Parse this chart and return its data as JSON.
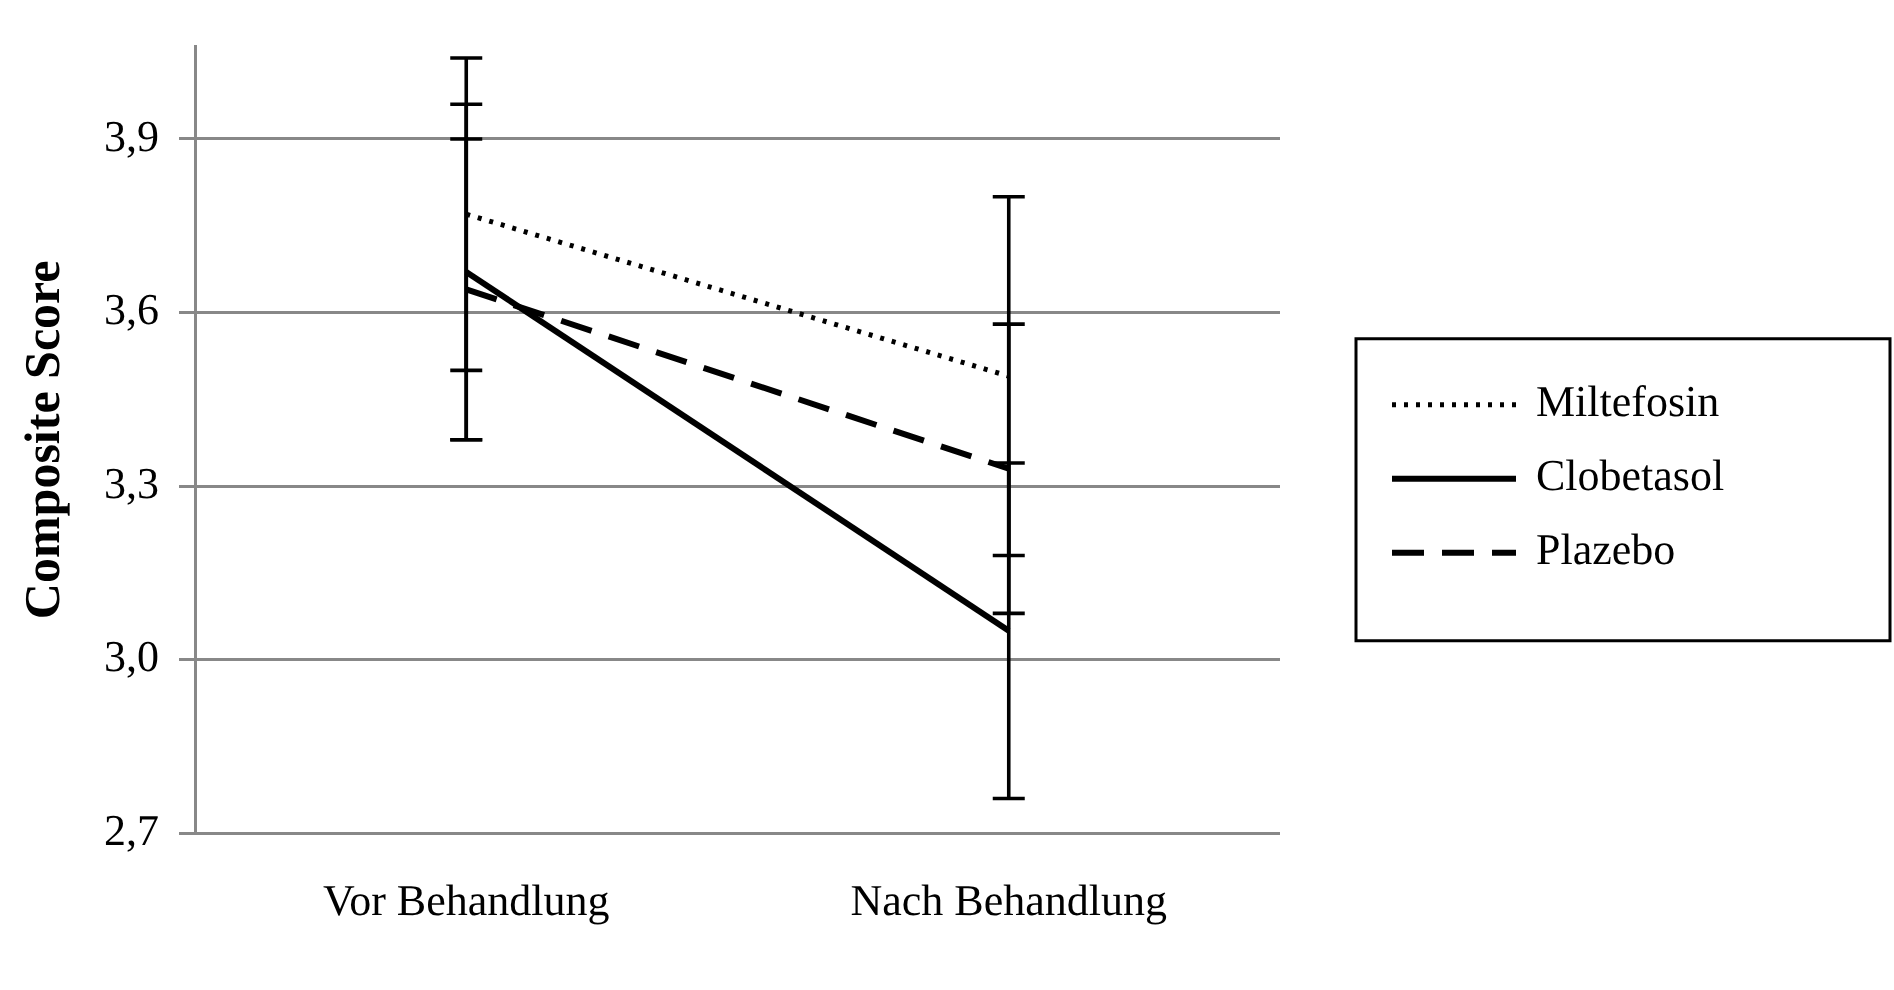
{
  "chart_data": {
    "type": "line",
    "ylabel": "Composite Score",
    "categories": [
      "Vor Behandlung",
      "Nach Behandlung"
    ],
    "series": [
      {
        "name": "Miltefosin",
        "color": "#000000",
        "line_style": "dotted",
        "values": [
          3.77,
          3.49
        ],
        "errors": [
          [
            3.5,
            4.04
          ],
          [
            3.18,
            3.8
          ]
        ]
      },
      {
        "name": "Clobetasol",
        "color": "#000000",
        "line_style": "solid",
        "values": [
          3.67,
          3.05
        ],
        "errors": [
          [
            3.38,
            3.96
          ],
          [
            2.76,
            3.34
          ]
        ]
      },
      {
        "name": "Plazebo",
        "color": "#000000",
        "line_style": "dashed",
        "values": [
          3.64,
          3.33
        ],
        "errors": [
          [
            3.38,
            3.9
          ],
          [
            3.08,
            3.58
          ]
        ]
      }
    ],
    "ylim": [
      2.7,
      4.06
    ],
    "yticks": [
      {
        "value": 2.7,
        "label": "2,7"
      },
      {
        "value": 3.0,
        "label": "3,0"
      },
      {
        "value": 3.3,
        "label": "3,3"
      },
      {
        "value": 3.6,
        "label": "3,6"
      },
      {
        "value": 3.9,
        "label": "3,9"
      }
    ],
    "grid": "y",
    "legend": "right",
    "marker": "none"
  }
}
